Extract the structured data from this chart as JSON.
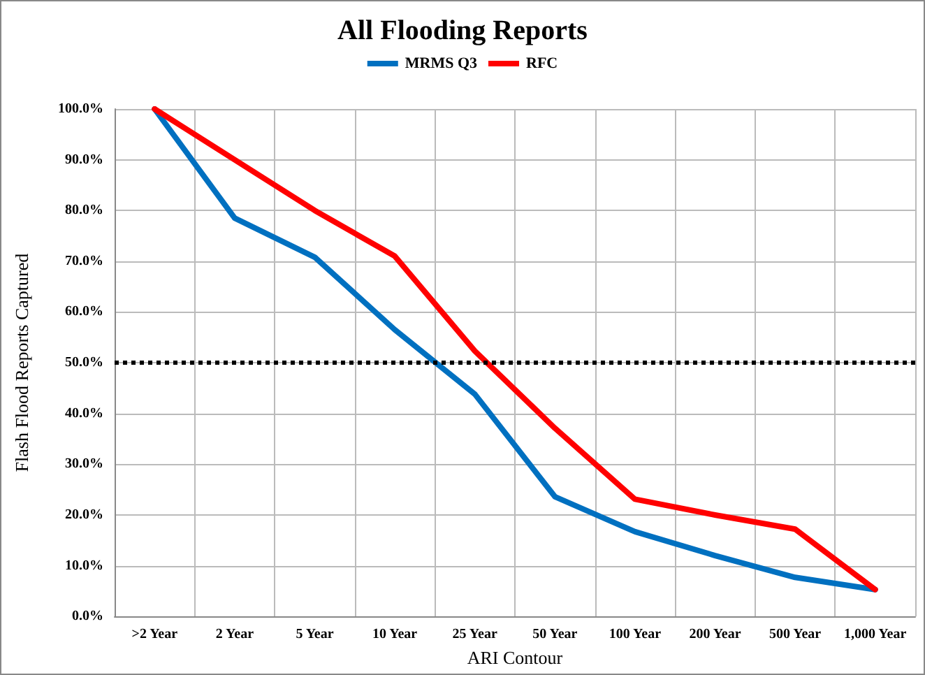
{
  "chart_data": {
    "type": "line",
    "title": "All Flooding Reports",
    "xlabel": "ARI Contour",
    "ylabel": "Flash Flood Reports Captured",
    "categories": [
      ">2 Year",
      "2 Year",
      "5 Year",
      "10 Year",
      "25 Year",
      "50 Year",
      "100 Year",
      "200 Year",
      "500 Year",
      "1,000 Year"
    ],
    "series": [
      {
        "name": "MRMS Q3",
        "color": "#0070c0",
        "values": [
          100,
          78.5,
          70.8,
          56.5,
          43.8,
          23.6,
          16.7,
          12,
          7.7,
          5.3
        ]
      },
      {
        "name": "RFC",
        "color": "#ff0000",
        "values": [
          100,
          90,
          80,
          71,
          52.3,
          37.1,
          23.1,
          20,
          17.2,
          5.3
        ]
      }
    ],
    "ylim": [
      0,
      100
    ],
    "yticks": [
      {
        "value": 0,
        "label": "0.0%"
      },
      {
        "value": 10,
        "label": "10.0%"
      },
      {
        "value": 20,
        "label": "20.0%"
      },
      {
        "value": 30,
        "label": "30.0%"
      },
      {
        "value": 40,
        "label": "40.0%"
      },
      {
        "value": 50,
        "label": "50.0%"
      },
      {
        "value": 60,
        "label": "60.0%"
      },
      {
        "value": 70,
        "label": "70.0%"
      },
      {
        "value": 80,
        "label": "80.0%"
      },
      {
        "value": 90,
        "label": "90.0%"
      },
      {
        "value": 100,
        "label": "100.0%"
      }
    ],
    "ref_lines": [
      {
        "axis": "y",
        "value": 50,
        "color": "#000000",
        "line_style": "dotted"
      }
    ],
    "grid": true,
    "legend": "top",
    "marker": "none",
    "line_style": "solid"
  }
}
